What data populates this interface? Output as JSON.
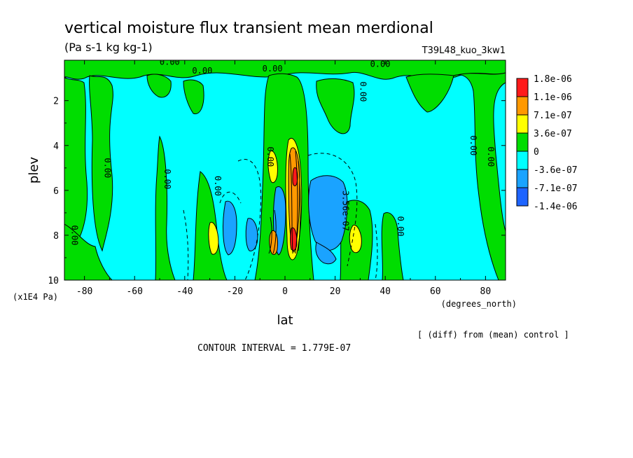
{
  "chart_data": {
    "type": "contour",
    "title": "vertical moisture flux transient mean merdional",
    "units": "(Pa s-1 kg kg-1)",
    "run_label": "T39L48_kuo_3kw1",
    "xlabel": "lat",
    "x_units": "(degrees_north)",
    "ylabel": "plev",
    "y_units": "(x1E4 Pa)",
    "xlim": [
      -88,
      88
    ],
    "ylim": [
      10,
      0.2
    ],
    "x_ticks": [
      -80,
      -60,
      -40,
      -20,
      0,
      20,
      40,
      60,
      80
    ],
    "y_ticks": [
      2,
      4,
      6,
      8,
      10
    ],
    "contour_interval": "CONTOUR INTERVAL = 1.779E-07",
    "footnote": "[ (diff) from (mean) control ]",
    "colorbar": {
      "labels": [
        "1.8e-06",
        "1.1e-06",
        "7.1e-07",
        "3.6e-07",
        "0",
        "-3.6e-07",
        "-7.1e-07",
        "-1.4e-06"
      ],
      "colors": [
        "#ff1a1a",
        "#ff9900",
        "#ffff00",
        "#00dd00",
        "#00ffff",
        "#1aa3ff",
        "#1e64ff"
      ]
    },
    "contour_labels": [
      {
        "text": "0.00",
        "lat": -46,
        "plev": 0.4,
        "rotate": 0
      },
      {
        "text": "0.00",
        "lat": -33,
        "plev": 0.8,
        "rotate": 0
      },
      {
        "text": "0.00",
        "lat": -5,
        "plev": 0.7,
        "rotate": 0
      },
      {
        "text": "0.00",
        "lat": 38,
        "plev": 0.5,
        "rotate": 0
      },
      {
        "text": "0.00",
        "lat": 30,
        "plev": 1.6,
        "rotate": 90
      },
      {
        "text": "0.00",
        "lat": -72,
        "plev": 5.0,
        "rotate": 90
      },
      {
        "text": "0.00",
        "lat": -48,
        "plev": 5.5,
        "rotate": 90
      },
      {
        "text": "0.00",
        "lat": -28,
        "plev": 5.8,
        "rotate": 90
      },
      {
        "text": "0.00",
        "lat": -85,
        "plev": 8.0,
        "rotate": 90
      },
      {
        "text": "0.00",
        "lat": -7,
        "plev": 4.5,
        "rotate": 90
      },
      {
        "text": "0.00",
        "lat": 74,
        "plev": 4.0,
        "rotate": 90
      },
      {
        "text": "0.00",
        "lat": 81,
        "plev": 4.5,
        "rotate": 90
      },
      {
        "text": "0.00",
        "lat": 45,
        "plev": 7.6,
        "rotate": 90
      },
      {
        "text": "-3.56e-07",
        "lat": 23,
        "plev": 6.8,
        "rotate": 90
      }
    ]
  }
}
